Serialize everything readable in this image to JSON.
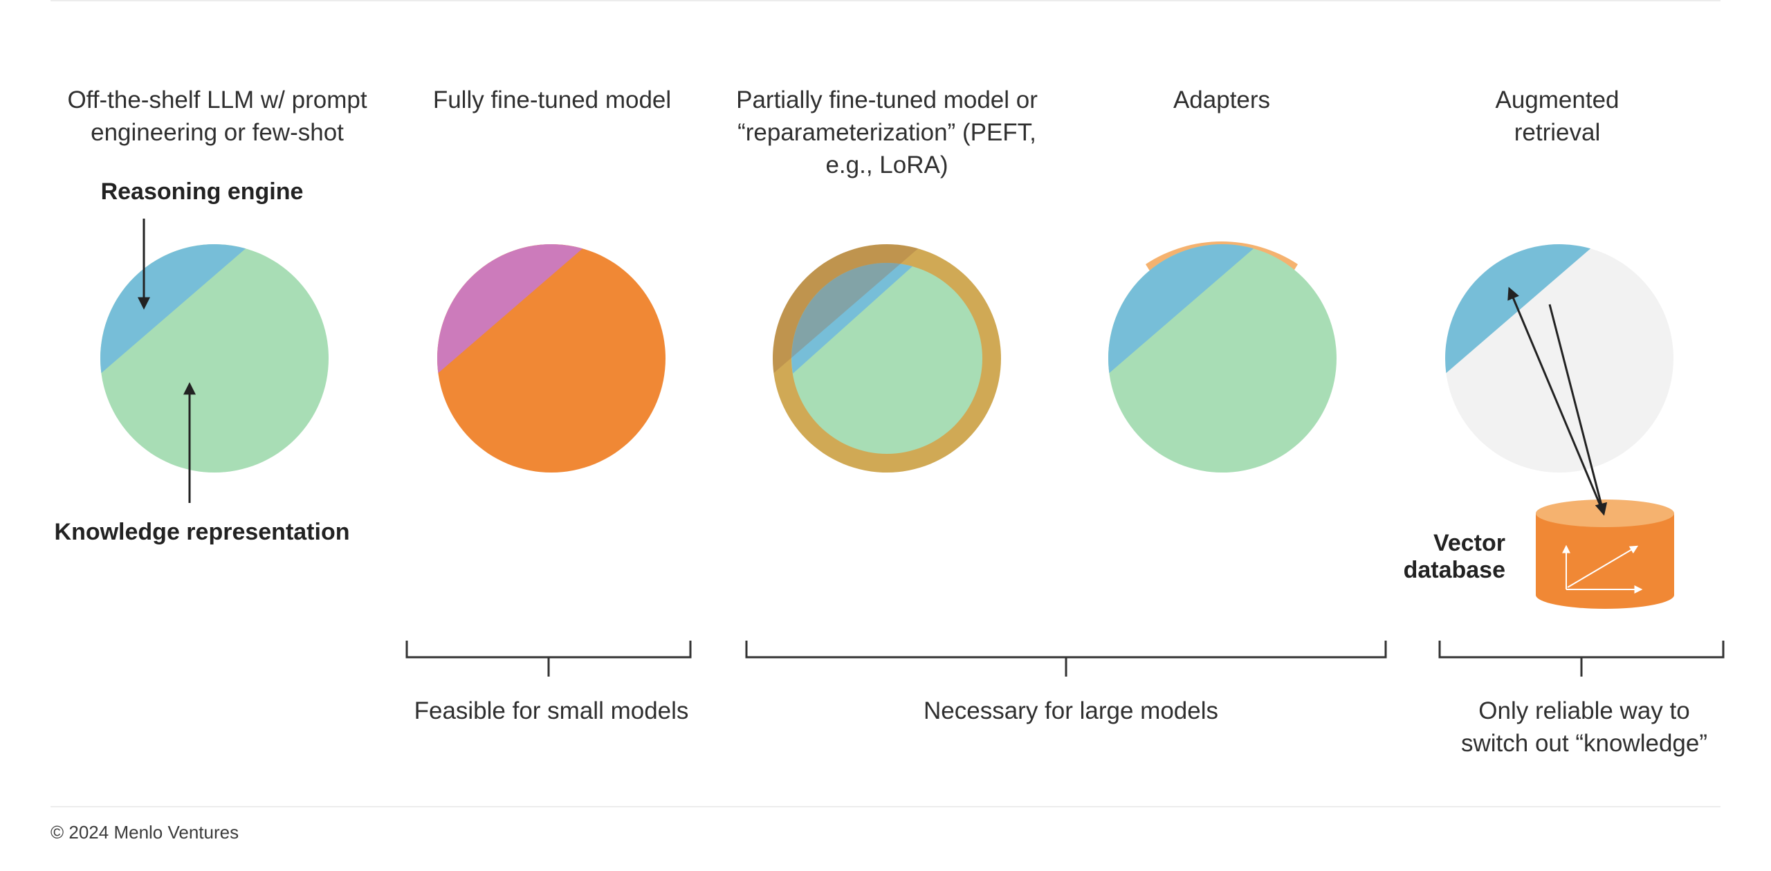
{
  "columns": [
    {
      "title_lines": [
        "Off-the-shelf LLM w/ prompt",
        "engineering or few-shot"
      ]
    },
    {
      "title_lines": [
        "Fully fine-tuned model"
      ]
    },
    {
      "title_lines": [
        "Partially fine-tuned model or",
        "“reparameterization” (PEFT,",
        "e.g., LoRA)"
      ]
    },
    {
      "title_lines": [
        "Adapters"
      ]
    },
    {
      "title_lines": [
        "Augmented",
        "retrieval"
      ]
    }
  ],
  "annotations": {
    "reasoning": "Reasoning engine",
    "knowledge": "Knowledge representation",
    "vector_db": [
      "Vector",
      "database"
    ]
  },
  "brackets": [
    {
      "label_lines": [
        "Feasible for small models"
      ]
    },
    {
      "label_lines": [
        "Necessary for large models"
      ]
    },
    {
      "label_lines": [
        "Only reliable way to",
        "switch out “knowledge”"
      ]
    }
  ],
  "colors": {
    "reasoning": "#77bed8",
    "knowledge": "#a8ddb5",
    "fine_tuned_reasoning": "#cc7bbb",
    "fine_tuned_knowledge": "#f08835",
    "peft_ring": "#d0a955",
    "adapter": "#f5b26f",
    "external_knowledge": "#f2f2f2",
    "database": "#f08835",
    "database_top": "#f5b26f"
  },
  "footer": {
    "copyright": "© 2024 Menlo Ventures"
  }
}
